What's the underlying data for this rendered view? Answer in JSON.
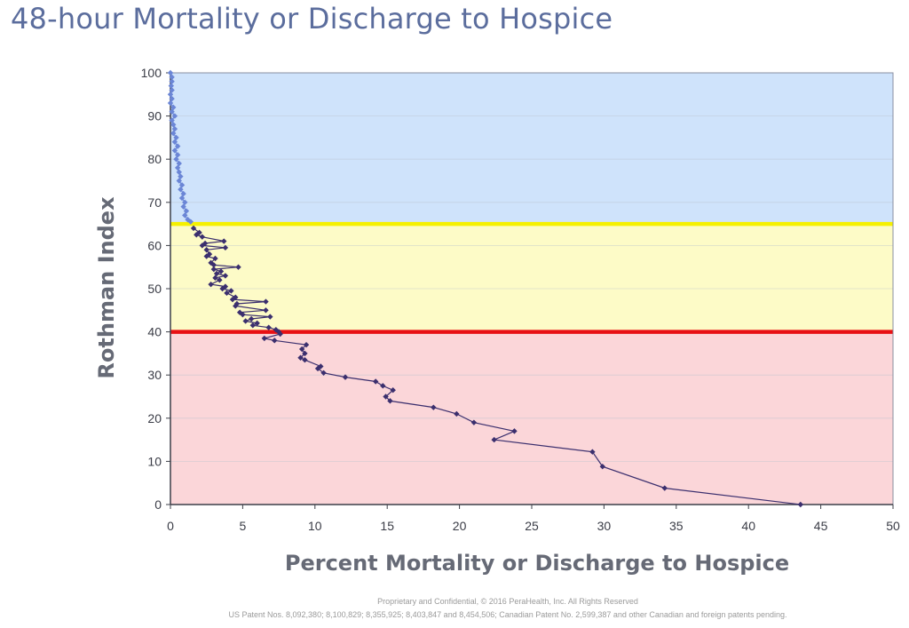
{
  "title": "48-hour Mortality or Discharge to Hospice",
  "footer": {
    "line1": "Proprietary and Confidential, © 2016 PeraHealth, Inc. All Rights Reserved",
    "line2": "US Patent Nos. 8,092,380; 8,100,829; 8,355,925; 8,403,847 and 8,454,506; Canadian Patent No. 2,599,387 and other Canadian and foreign patents pending."
  },
  "chart_data": {
    "type": "line",
    "title": "48-hour Mortality or Discharge to Hospice",
    "xlabel": "Percent Mortality or Discharge to Hospice",
    "ylabel": "Rothman Index",
    "xlim": [
      0,
      50
    ],
    "ylim": [
      0,
      100
    ],
    "x_ticks": [
      "0",
      "5",
      "10",
      "15",
      "20",
      "25",
      "30",
      "35",
      "40",
      "45",
      "50"
    ],
    "y_ticks": [
      "0",
      "10",
      "20",
      "30",
      "40",
      "50",
      "60",
      "70",
      "80",
      "90",
      "100"
    ],
    "grid": true,
    "bands": [
      {
        "from": 65,
        "to": 100,
        "color": "#cfe3fb"
      },
      {
        "from": 40,
        "to": 65,
        "color": "#fdfbc7"
      },
      {
        "from": 0,
        "to": 40,
        "color": "#fbd6d9"
      }
    ],
    "threshold_lines": [
      {
        "y": 65,
        "color": "#f5f000"
      },
      {
        "y": 40,
        "color": "#e81014"
      }
    ],
    "series": [
      {
        "color": "#6b86d6",
        "points": [
          [
            0.0,
            100
          ],
          [
            0.1,
            99
          ],
          [
            0.1,
            98
          ],
          [
            0.05,
            97
          ],
          [
            0.1,
            96
          ],
          [
            0.0,
            95
          ],
          [
            0.1,
            94
          ],
          [
            0.0,
            93
          ],
          [
            0.2,
            92
          ],
          [
            0.1,
            91
          ],
          [
            0.3,
            90
          ],
          [
            0.1,
            89
          ],
          [
            0.2,
            88
          ],
          [
            0.3,
            87
          ],
          [
            0.2,
            86
          ],
          [
            0.4,
            85
          ],
          [
            0.3,
            84
          ],
          [
            0.5,
            83
          ],
          [
            0.3,
            82
          ],
          [
            0.5,
            81
          ],
          [
            0.4,
            80
          ],
          [
            0.6,
            79
          ],
          [
            0.5,
            78
          ],
          [
            0.6,
            77
          ],
          [
            0.7,
            76
          ],
          [
            0.6,
            75
          ],
          [
            0.8,
            74
          ],
          [
            0.7,
            73
          ],
          [
            0.9,
            72
          ],
          [
            0.8,
            71
          ],
          [
            1.0,
            70
          ],
          [
            0.9,
            69
          ],
          [
            1.1,
            68
          ],
          [
            1.0,
            67
          ],
          [
            1.2,
            66
          ],
          [
            1.4,
            65.5
          ]
        ]
      },
      {
        "color": "#3b2f6e",
        "points": [
          [
            1.6,
            64
          ],
          [
            2.0,
            63
          ],
          [
            1.8,
            62.5
          ],
          [
            2.2,
            62
          ],
          [
            3.7,
            61
          ],
          [
            2.4,
            60.5
          ],
          [
            2.2,
            60
          ],
          [
            3.8,
            59.5
          ],
          [
            2.5,
            59
          ],
          [
            2.7,
            58
          ],
          [
            2.5,
            57.5
          ],
          [
            3.1,
            57
          ],
          [
            2.8,
            56
          ],
          [
            3.0,
            55.5
          ],
          [
            4.7,
            55
          ],
          [
            3.0,
            54.5
          ],
          [
            3.5,
            54
          ],
          [
            3.2,
            53.5
          ],
          [
            3.8,
            53
          ],
          [
            3.1,
            52.5
          ],
          [
            3.4,
            52
          ],
          [
            2.8,
            51
          ],
          [
            3.8,
            50.5
          ],
          [
            3.6,
            50
          ],
          [
            4.2,
            49.5
          ],
          [
            3.9,
            49
          ],
          [
            4.5,
            48
          ],
          [
            4.3,
            47.5
          ],
          [
            6.6,
            47
          ],
          [
            4.6,
            46.5
          ],
          [
            4.5,
            46
          ],
          [
            6.6,
            45
          ],
          [
            4.8,
            44.5
          ],
          [
            5.0,
            44
          ],
          [
            6.9,
            43.5
          ],
          [
            5.6,
            43
          ],
          [
            5.2,
            42.5
          ],
          [
            6.0,
            42
          ],
          [
            5.7,
            41.5
          ],
          [
            6.8,
            41
          ],
          [
            7.3,
            40.5
          ],
          [
            7.5,
            40
          ],
          [
            7.6,
            39.5
          ],
          [
            6.5,
            38.5
          ],
          [
            7.2,
            38
          ],
          [
            9.4,
            37
          ],
          [
            9.1,
            36
          ],
          [
            9.3,
            35
          ],
          [
            9.0,
            34
          ],
          [
            9.3,
            33.5
          ],
          [
            10.4,
            32
          ],
          [
            10.2,
            31.5
          ],
          [
            10.6,
            30.5
          ],
          [
            12.1,
            29.5
          ],
          [
            14.2,
            28.5
          ],
          [
            14.7,
            27.5
          ],
          [
            15.4,
            26.5
          ],
          [
            14.9,
            25
          ],
          [
            15.2,
            24
          ],
          [
            18.2,
            22.5
          ],
          [
            19.8,
            21
          ],
          [
            21.0,
            19
          ],
          [
            23.8,
            17
          ],
          [
            22.4,
            15
          ],
          [
            29.2,
            12.2
          ],
          [
            29.9,
            8.8
          ],
          [
            34.2,
            3.8
          ],
          [
            43.6,
            0
          ]
        ]
      }
    ]
  }
}
